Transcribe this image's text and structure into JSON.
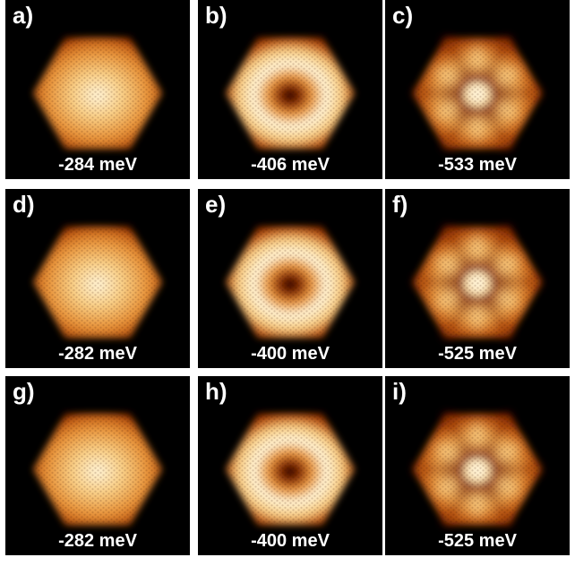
{
  "figure": {
    "background": "#000000",
    "colormap": [
      "#1a0300",
      "#7a2200",
      "#c05a12",
      "#e8943a",
      "#f9cf86",
      "#fff3d6"
    ],
    "panels": [
      {
        "label": "a)",
        "energy": "-284 meV",
        "pattern": "filled"
      },
      {
        "label": "b)",
        "energy": "-406 meV",
        "pattern": "ring"
      },
      {
        "label": "c)",
        "energy": "-533 meV",
        "pattern": "petals"
      },
      {
        "label": "d)",
        "energy": "-282 meV",
        "pattern": "filled"
      },
      {
        "label": "e)",
        "energy": "-400 meV",
        "pattern": "ring"
      },
      {
        "label": "f)",
        "energy": "-525 meV",
        "pattern": "petals"
      },
      {
        "label": "g)",
        "energy": "-282 meV",
        "pattern": "filled"
      },
      {
        "label": "h)",
        "energy": "-400 meV",
        "pattern": "ring"
      },
      {
        "label": "i)",
        "energy": "-525 meV",
        "pattern": "petals"
      }
    ]
  }
}
